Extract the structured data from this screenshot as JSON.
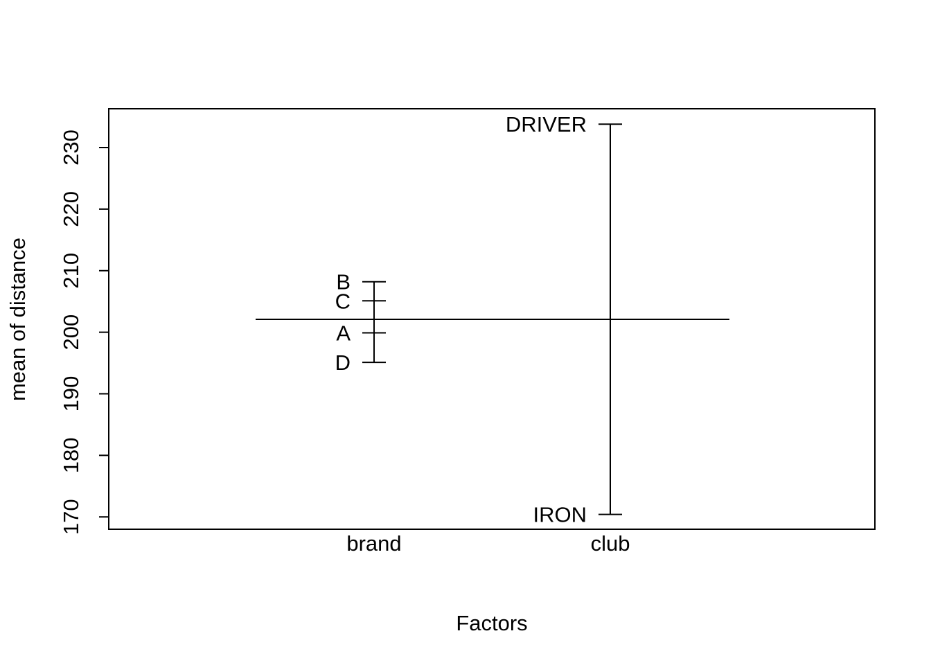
{
  "chart_data": {
    "type": "factor-means",
    "xlabel": "Factors",
    "ylabel": "mean of distance",
    "ylim": [
      168,
      236.3
    ],
    "yticks": [
      170,
      180,
      190,
      200,
      210,
      220,
      230
    ],
    "grand_mean": 202.1,
    "factors": [
      {
        "name": "brand",
        "levels": [
          {
            "label": "B",
            "value": 208.2
          },
          {
            "label": "C",
            "value": 205.1
          },
          {
            "label": "A",
            "value": 199.9
          },
          {
            "label": "D",
            "value": 195.1
          }
        ]
      },
      {
        "name": "club",
        "levels": [
          {
            "label": "DRIVER",
            "value": 233.8
          },
          {
            "label": "IRON",
            "value": 170.4
          }
        ]
      }
    ]
  }
}
